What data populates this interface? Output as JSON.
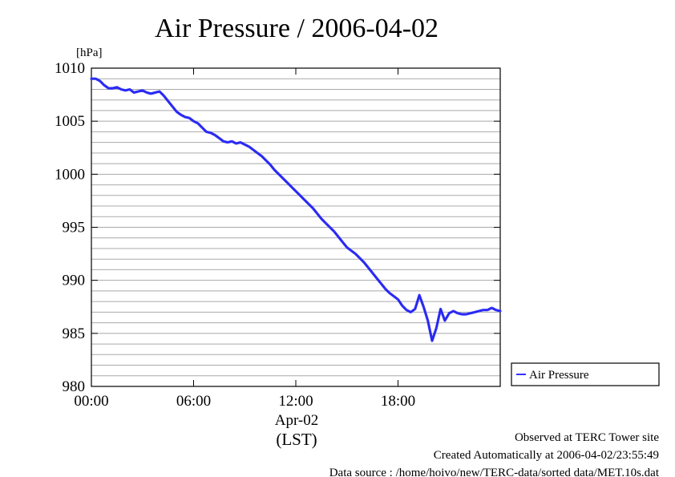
{
  "chart_data": {
    "type": "line",
    "title": "Air Pressure / 2006-04-02",
    "ylabel": "[hPa]",
    "xlabel_date": "Apr-02",
    "xlabel_tz": "(LST)",
    "ylim": [
      980,
      1010
    ],
    "xlim_hours": [
      0,
      24
    ],
    "x_tick_labels": [
      "00:00",
      "06:00",
      "12:00",
      "18:00"
    ],
    "y_tick_labels": [
      "1010",
      "1005",
      "1000",
      "995",
      "990",
      "985",
      "980"
    ],
    "grid": "horizontal, every 1 hPa",
    "legend_position": "right",
    "series": [
      {
        "name": "Air Pressure",
        "color": "#3333ff",
        "x_hours": [
          0.0,
          0.25,
          0.5,
          0.75,
          1.0,
          1.25,
          1.5,
          1.75,
          2.0,
          2.25,
          2.5,
          2.75,
          3.0,
          3.25,
          3.5,
          3.75,
          4.0,
          4.25,
          4.5,
          4.75,
          5.0,
          5.25,
          5.5,
          5.75,
          6.0,
          6.25,
          6.5,
          6.75,
          7.0,
          7.25,
          7.5,
          7.75,
          8.0,
          8.25,
          8.5,
          8.75,
          9.0,
          9.25,
          9.5,
          9.75,
          10.0,
          10.25,
          10.5,
          10.75,
          11.0,
          11.25,
          11.5,
          11.75,
          12.0,
          12.25,
          12.5,
          12.75,
          13.0,
          13.25,
          13.5,
          13.75,
          14.0,
          14.25,
          14.5,
          14.75,
          15.0,
          15.25,
          15.5,
          15.75,
          16.0,
          16.25,
          16.5,
          16.75,
          17.0,
          17.25,
          17.5,
          17.75,
          18.0,
          18.25,
          18.5,
          18.75,
          19.0,
          19.25,
          19.5,
          19.75,
          20.0,
          20.25,
          20.5,
          20.75,
          21.0,
          21.25,
          21.5,
          21.75,
          22.0,
          22.25,
          22.5,
          22.75,
          23.0,
          23.25,
          23.5,
          23.75,
          24.0
        ],
        "values": [
          1009.0,
          1009.0,
          1008.8,
          1008.4,
          1008.1,
          1008.1,
          1008.2,
          1008.0,
          1007.9,
          1008.0,
          1007.7,
          1007.8,
          1007.9,
          1007.7,
          1007.6,
          1007.7,
          1007.8,
          1007.4,
          1006.9,
          1006.4,
          1005.9,
          1005.6,
          1005.4,
          1005.3,
          1005.0,
          1004.8,
          1004.4,
          1004.0,
          1003.9,
          1003.7,
          1003.4,
          1003.1,
          1003.0,
          1003.1,
          1002.9,
          1003.0,
          1002.8,
          1002.6,
          1002.3,
          1002.0,
          1001.7,
          1001.3,
          1000.9,
          1000.4,
          1000.0,
          999.6,
          999.2,
          998.8,
          998.4,
          998.0,
          997.6,
          997.2,
          996.8,
          996.3,
          995.8,
          995.4,
          995.0,
          994.6,
          994.1,
          993.6,
          993.1,
          992.8,
          992.5,
          992.1,
          991.7,
          991.2,
          990.7,
          990.2,
          989.7,
          989.2,
          988.8,
          988.5,
          988.2,
          987.6,
          987.2,
          987.0,
          987.3,
          988.6,
          987.5,
          986.2,
          984.3,
          985.5,
          987.3,
          986.2,
          986.9,
          987.1,
          986.9,
          986.8,
          986.8,
          986.9,
          987.0,
          987.1,
          987.2,
          987.2,
          987.4,
          987.2,
          987.1
        ]
      }
    ]
  },
  "footer": {
    "observed": "Observed at TERC Tower site",
    "created": "Created Automatically at 2006-04-02/23:55:49",
    "source": "Data source : /home/hoivo/new/TERC-data/sorted  data/MET.10s.dat"
  }
}
